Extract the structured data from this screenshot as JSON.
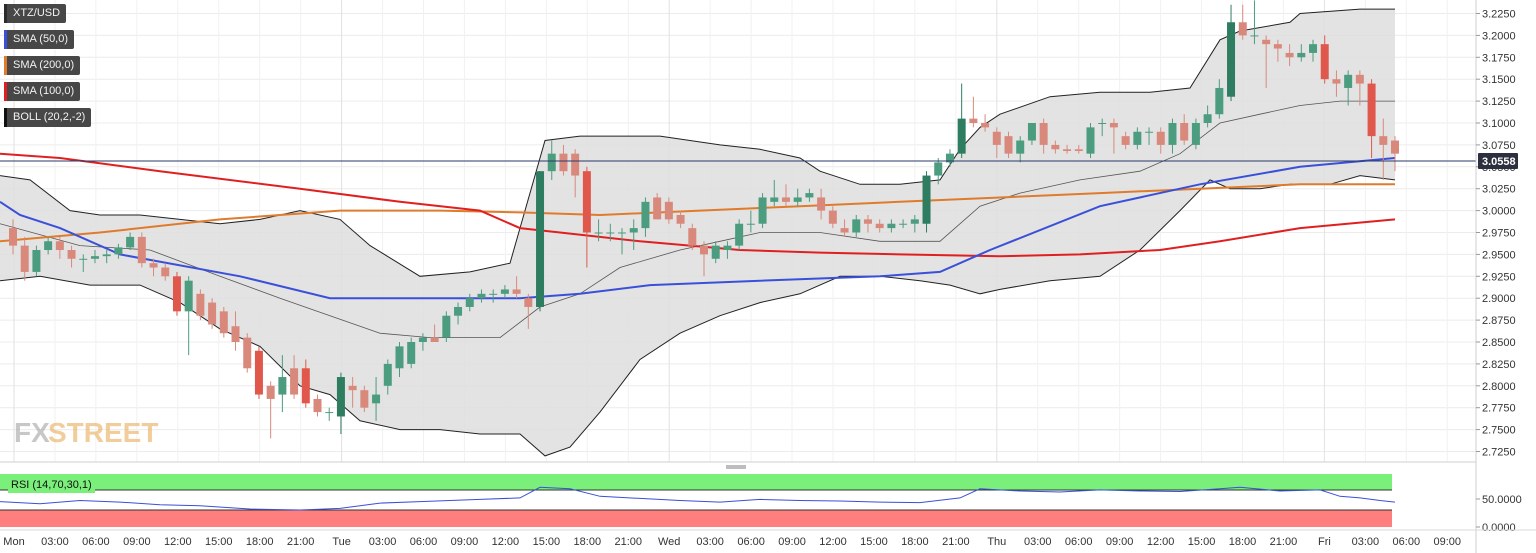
{
  "legend": [
    {
      "label": "XTZ/USD",
      "color": "#2b2b2b"
    },
    {
      "label": "SMA (50,0)",
      "color": "#3a50d9"
    },
    {
      "label": "SMA (200,0)",
      "color": "#e07b2c"
    },
    {
      "label": "SMA (100,0)",
      "color": "#e02020"
    },
    {
      "label": "BOLL (20,2,-2)",
      "color": "#111111"
    }
  ],
  "rsi_label": "RSI (14,70,30,1)",
  "current_price": "3.0558",
  "watermark": {
    "fx": "FX",
    "street": "STREET"
  },
  "colors": {
    "up": "#4c9c7f",
    "up_strong": "#2e7d61",
    "down": "#d9897c",
    "down_strong": "#e0584c",
    "sma50": "#3a50d9",
    "sma100": "#e02020",
    "sma200": "#e07b2c",
    "boll_fill": "#dedede",
    "boll_line": "#222222",
    "rsi_overbought": "#7aef7a",
    "rsi_oversold": "#ff7f7f",
    "rsi_line": "#3a50d9"
  },
  "chart_data": {
    "type": "candlestick",
    "symbol": "XTZ/USD",
    "ylim": [
      2.72,
      3.24
    ],
    "y_ticks": [
      "3.2250",
      "3.2000",
      "3.1750",
      "3.1500",
      "3.1250",
      "3.1000",
      "3.0750",
      "3.0500",
      "3.0250",
      "3.0000",
      "2.9750",
      "2.9500",
      "2.9250",
      "2.9000",
      "2.8750",
      "2.8500",
      "2.8250",
      "2.8000",
      "2.7750",
      "2.7500",
      "2.7250"
    ],
    "x_ticks": [
      "Mon",
      "03:00",
      "06:00",
      "09:00",
      "12:00",
      "15:00",
      "18:00",
      "21:00",
      "Tue",
      "03:00",
      "06:00",
      "09:00",
      "12:00",
      "15:00",
      "18:00",
      "21:00",
      "Wed",
      "03:00",
      "06:00",
      "09:00",
      "12:00",
      "15:00",
      "18:00",
      "21:00",
      "Thu",
      "03:00",
      "06:00",
      "09:00",
      "12:00",
      "15:00",
      "18:00",
      "21:00",
      "Fri",
      "03:00",
      "06:00",
      "09:00"
    ],
    "candles": [
      [
        2.98,
        2.99,
        2.95,
        2.96
      ],
      [
        2.96,
        2.97,
        2.92,
        2.93
      ],
      [
        2.93,
        2.96,
        2.925,
        2.955
      ],
      [
        2.955,
        2.97,
        2.95,
        2.965
      ],
      [
        2.965,
        2.97,
        2.945,
        2.955
      ],
      [
        2.955,
        2.96,
        2.935,
        2.945
      ],
      [
        2.945,
        2.95,
        2.93,
        2.945
      ],
      [
        2.945,
        2.955,
        2.94,
        2.948
      ],
      [
        2.948,
        2.955,
        2.94,
        2.95
      ],
      [
        2.95,
        2.962,
        2.945,
        2.958
      ],
      [
        2.958,
        2.975,
        2.955,
        2.97
      ],
      [
        2.97,
        2.975,
        2.935,
        2.94
      ],
      [
        2.94,
        2.945,
        2.925,
        2.935
      ],
      [
        2.935,
        2.94,
        2.92,
        2.925
      ],
      [
        2.925,
        2.93,
        2.88,
        2.885
      ],
      [
        2.885,
        2.925,
        2.835,
        2.92
      ],
      [
        2.905,
        2.91,
        2.875,
        2.88
      ],
      [
        2.895,
        2.9,
        2.865,
        2.87
      ],
      [
        2.885,
        2.89,
        2.855,
        2.86
      ],
      [
        2.868,
        2.885,
        2.84,
        2.85
      ],
      [
        2.855,
        2.86,
        2.815,
        2.82
      ],
      [
        2.84,
        2.845,
        2.785,
        2.79
      ],
      [
        2.8,
        2.805,
        2.74,
        2.785
      ],
      [
        2.79,
        2.835,
        2.77,
        2.81
      ],
      [
        2.82,
        2.835,
        2.785,
        2.79
      ],
      [
        2.82,
        2.83,
        2.775,
        2.78
      ],
      [
        2.785,
        2.79,
        2.765,
        2.77
      ],
      [
        2.77,
        2.775,
        2.76,
        2.77
      ],
      [
        2.765,
        2.815,
        2.745,
        2.81
      ],
      [
        2.8,
        2.81,
        2.775,
        2.795
      ],
      [
        2.795,
        2.8,
        2.77,
        2.775
      ],
      [
        2.78,
        2.81,
        2.76,
        2.79
      ],
      [
        2.8,
        2.83,
        2.79,
        2.825
      ],
      [
        2.82,
        2.85,
        2.81,
        2.845
      ],
      [
        2.825,
        2.855,
        2.82,
        2.85
      ],
      [
        2.85,
        2.86,
        2.84,
        2.855
      ],
      [
        2.855,
        2.87,
        2.85,
        2.85
      ],
      [
        2.855,
        2.885,
        2.85,
        2.88
      ],
      [
        2.88,
        2.895,
        2.87,
        2.89
      ],
      [
        2.89,
        2.905,
        2.885,
        2.9
      ],
      [
        2.9,
        2.91,
        2.895,
        2.905
      ],
      [
        2.905,
        2.91,
        2.895,
        2.905
      ],
      [
        2.905,
        2.915,
        2.9,
        2.91
      ],
      [
        2.91,
        2.925,
        2.9,
        2.905
      ],
      [
        2.9,
        2.905,
        2.865,
        2.89
      ],
      [
        2.89,
        3.045,
        2.885,
        3.045
      ],
      [
        3.045,
        3.08,
        3.035,
        3.065
      ],
      [
        3.065,
        3.075,
        3.04,
        3.045
      ],
      [
        3.065,
        3.07,
        3.015,
        3.04
      ],
      [
        3.045,
        3.05,
        2.935,
        2.975
      ],
      [
        2.975,
        2.99,
        2.965,
        2.975
      ],
      [
        2.975,
        2.985,
        2.965,
        2.975
      ],
      [
        2.975,
        2.98,
        2.95,
        2.975
      ],
      [
        2.975,
        2.99,
        2.955,
        2.98
      ],
      [
        2.98,
        3.015,
        2.97,
        3.01
      ],
      [
        3.015,
        3.02,
        2.99,
        2.99
      ],
      [
        3.01,
        3.015,
        2.985,
        2.99
      ],
      [
        2.995,
        3.0,
        2.98,
        2.985
      ],
      [
        2.98,
        2.985,
        2.955,
        2.96
      ],
      [
        2.96,
        2.965,
        2.925,
        2.95
      ],
      [
        2.945,
        2.965,
        2.94,
        2.96
      ],
      [
        2.955,
        2.965,
        2.945,
        2.96
      ],
      [
        2.96,
        2.99,
        2.955,
        2.985
      ],
      [
        2.985,
        3.0,
        2.975,
        2.985
      ],
      [
        2.985,
        3.02,
        2.98,
        3.015
      ],
      [
        3.01,
        3.035,
        3.005,
        3.015
      ],
      [
        3.015,
        3.03,
        3.005,
        3.01
      ],
      [
        3.01,
        3.025,
        3.005,
        3.015
      ],
      [
        3.015,
        3.025,
        3.01,
        3.02
      ],
      [
        3.015,
        3.025,
        2.99,
        3.0
      ],
      [
        3.0,
        3.005,
        2.98,
        2.985
      ],
      [
        2.98,
        2.99,
        2.97,
        2.975
      ],
      [
        2.975,
        2.995,
        2.97,
        2.99
      ],
      [
        2.99,
        2.995,
        2.975,
        2.985
      ],
      [
        2.985,
        2.99,
        2.975,
        2.98
      ],
      [
        2.98,
        2.99,
        2.975,
        2.985
      ],
      [
        2.985,
        2.99,
        2.98,
        2.985
      ],
      [
        2.985,
        2.995,
        2.975,
        2.99
      ],
      [
        2.985,
        3.045,
        2.975,
        3.04
      ],
      [
        3.04,
        3.06,
        3.03,
        3.055
      ],
      [
        3.055,
        3.07,
        3.05,
        3.065
      ],
      [
        3.065,
        3.145,
        3.06,
        3.105
      ],
      [
        3.105,
        3.13,
        3.095,
        3.1
      ],
      [
        3.1,
        3.11,
        3.09,
        3.095
      ],
      [
        3.09,
        3.095,
        3.06,
        3.075
      ],
      [
        3.085,
        3.09,
        3.06,
        3.065
      ],
      [
        3.065,
        3.085,
        3.055,
        3.08
      ],
      [
        3.08,
        3.1,
        3.075,
        3.1
      ],
      [
        3.1,
        3.105,
        3.065,
        3.075
      ],
      [
        3.075,
        3.08,
        3.065,
        3.07
      ],
      [
        3.07,
        3.075,
        3.065,
        3.068
      ],
      [
        3.07,
        3.075,
        3.065,
        3.068
      ],
      [
        3.065,
        3.1,
        3.06,
        3.095
      ],
      [
        3.1,
        3.105,
        3.085,
        3.1
      ],
      [
        3.1,
        3.105,
        3.065,
        3.095
      ],
      [
        3.085,
        3.09,
        3.07,
        3.075
      ],
      [
        3.075,
        3.095,
        3.07,
        3.09
      ],
      [
        3.09,
        3.095,
        3.075,
        3.09
      ],
      [
        3.09,
        3.095,
        3.065,
        3.075
      ],
      [
        3.075,
        3.105,
        3.065,
        3.1
      ],
      [
        3.1,
        3.11,
        3.075,
        3.08
      ],
      [
        3.075,
        3.105,
        3.07,
        3.1
      ],
      [
        3.1,
        3.12,
        3.095,
        3.11
      ],
      [
        3.11,
        3.15,
        3.105,
        3.14
      ],
      [
        3.13,
        3.235,
        3.125,
        3.215
      ],
      [
        3.215,
        3.235,
        3.195,
        3.2
      ],
      [
        3.2,
        3.24,
        3.19,
        3.2
      ],
      [
        3.195,
        3.2,
        3.14,
        3.19
      ],
      [
        3.19,
        3.195,
        3.17,
        3.185
      ],
      [
        3.18,
        3.19,
        3.165,
        3.175
      ],
      [
        3.175,
        3.19,
        3.17,
        3.18
      ],
      [
        3.18,
        3.195,
        3.17,
        3.19
      ],
      [
        3.19,
        3.2,
        3.145,
        3.15
      ],
      [
        3.15,
        3.16,
        3.13,
        3.145
      ],
      [
        3.14,
        3.16,
        3.12,
        3.155
      ],
      [
        3.155,
        3.16,
        3.12,
        3.145
      ],
      [
        3.145,
        3.15,
        3.06,
        3.085
      ],
      [
        3.085,
        3.105,
        3.035,
        3.075
      ],
      [
        3.08,
        3.085,
        3.045,
        3.065
      ]
    ],
    "sma50": [
      [
        0,
        3.01
      ],
      [
        20,
        2.995
      ],
      [
        60,
        2.98
      ],
      [
        120,
        2.95
      ],
      [
        240,
        2.925
      ],
      [
        330,
        2.9
      ],
      [
        440,
        2.9
      ],
      [
        520,
        2.9
      ],
      [
        580,
        2.905
      ],
      [
        650,
        2.915
      ],
      [
        760,
        2.92
      ],
      [
        880,
        2.925
      ],
      [
        940,
        2.93
      ],
      [
        990,
        2.955
      ],
      [
        1100,
        3.005
      ],
      [
        1200,
        3.03
      ],
      [
        1300,
        3.05
      ],
      [
        1395,
        3.06
      ]
    ],
    "sma100": [
      [
        0,
        3.065
      ],
      [
        60,
        3.06
      ],
      [
        160,
        3.045
      ],
      [
        300,
        3.025
      ],
      [
        400,
        3.01
      ],
      [
        480,
        3.0
      ],
      [
        520,
        2.98
      ],
      [
        560,
        2.975
      ],
      [
        640,
        2.965
      ],
      [
        740,
        2.955
      ],
      [
        820,
        2.952
      ],
      [
        900,
        2.95
      ],
      [
        1000,
        2.948
      ],
      [
        1080,
        2.95
      ],
      [
        1160,
        2.955
      ],
      [
        1220,
        2.965
      ],
      [
        1300,
        2.98
      ],
      [
        1395,
        2.99
      ]
    ],
    "sma200": [
      [
        0,
        2.965
      ],
      [
        100,
        2.975
      ],
      [
        220,
        2.99
      ],
      [
        340,
        3.0
      ],
      [
        440,
        3.0
      ],
      [
        520,
        2.998
      ],
      [
        600,
        2.995
      ],
      [
        700,
        3.0
      ],
      [
        800,
        3.005
      ],
      [
        900,
        3.01
      ],
      [
        1000,
        3.015
      ],
      [
        1100,
        3.02
      ],
      [
        1200,
        3.025
      ],
      [
        1300,
        3.03
      ],
      [
        1395,
        3.03
      ]
    ],
    "boll_upper": [
      [
        0,
        3.04
      ],
      [
        30,
        3.035
      ],
      [
        70,
        3.0
      ],
      [
        100,
        2.995
      ],
      [
        140,
        2.995
      ],
      [
        180,
        2.99
      ],
      [
        220,
        2.985
      ],
      [
        260,
        2.99
      ],
      [
        300,
        3.0
      ],
      [
        340,
        2.99
      ],
      [
        370,
        2.96
      ],
      [
        420,
        2.925
      ],
      [
        470,
        2.93
      ],
      [
        510,
        2.94
      ],
      [
        545,
        3.08
      ],
      [
        580,
        3.085
      ],
      [
        630,
        3.085
      ],
      [
        660,
        3.085
      ],
      [
        720,
        3.075
      ],
      [
        760,
        3.07
      ],
      [
        800,
        3.06
      ],
      [
        820,
        3.045
      ],
      [
        860,
        3.03
      ],
      [
        900,
        3.03
      ],
      [
        940,
        3.035
      ],
      [
        960,
        3.07
      ],
      [
        980,
        3.095
      ],
      [
        1000,
        3.11
      ],
      [
        1050,
        3.13
      ],
      [
        1100,
        3.135
      ],
      [
        1150,
        3.135
      ],
      [
        1190,
        3.14
      ],
      [
        1220,
        3.195
      ],
      [
        1240,
        3.205
      ],
      [
        1290,
        3.215
      ],
      [
        1300,
        3.225
      ],
      [
        1360,
        3.23
      ],
      [
        1395,
        3.23
      ]
    ],
    "boll_lower": [
      [
        0,
        2.92
      ],
      [
        40,
        2.925
      ],
      [
        90,
        2.915
      ],
      [
        140,
        2.915
      ],
      [
        180,
        2.895
      ],
      [
        220,
        2.865
      ],
      [
        260,
        2.845
      ],
      [
        300,
        2.8
      ],
      [
        330,
        2.79
      ],
      [
        360,
        2.76
      ],
      [
        400,
        2.75
      ],
      [
        440,
        2.75
      ],
      [
        480,
        2.745
      ],
      [
        520,
        2.745
      ],
      [
        545,
        2.72
      ],
      [
        570,
        2.73
      ],
      [
        600,
        2.77
      ],
      [
        640,
        2.83
      ],
      [
        680,
        2.86
      ],
      [
        720,
        2.88
      ],
      [
        760,
        2.895
      ],
      [
        800,
        2.905
      ],
      [
        840,
        2.925
      ],
      [
        880,
        2.925
      ],
      [
        920,
        2.92
      ],
      [
        950,
        2.915
      ],
      [
        980,
        2.905
      ],
      [
        1000,
        2.91
      ],
      [
        1050,
        2.92
      ],
      [
        1100,
        2.925
      ],
      [
        1140,
        2.955
      ],
      [
        1180,
        3.0
      ],
      [
        1210,
        3.035
      ],
      [
        1230,
        3.025
      ],
      [
        1260,
        3.025
      ],
      [
        1290,
        3.03
      ],
      [
        1330,
        3.03
      ],
      [
        1360,
        3.04
      ],
      [
        1395,
        3.035
      ]
    ],
    "boll_mid": [
      [
        0,
        2.985
      ],
      [
        80,
        2.96
      ],
      [
        150,
        2.955
      ],
      [
        220,
        2.925
      ],
      [
        280,
        2.9
      ],
      [
        330,
        2.88
      ],
      [
        380,
        2.86
      ],
      [
        430,
        2.855
      ],
      [
        500,
        2.855
      ],
      [
        540,
        2.89
      ],
      [
        580,
        2.905
      ],
      [
        620,
        2.935
      ],
      [
        680,
        2.955
      ],
      [
        720,
        2.965
      ],
      [
        760,
        2.975
      ],
      [
        820,
        2.975
      ],
      [
        880,
        2.965
      ],
      [
        940,
        2.965
      ],
      [
        980,
        3.005
      ],
      [
        1020,
        3.02
      ],
      [
        1080,
        3.035
      ],
      [
        1140,
        3.045
      ],
      [
        1180,
        3.065
      ],
      [
        1220,
        3.1
      ],
      [
        1260,
        3.11
      ],
      [
        1300,
        3.12
      ],
      [
        1340,
        3.125
      ],
      [
        1395,
        3.125
      ]
    ],
    "rsi": [
      [
        0,
        48
      ],
      [
        40,
        44
      ],
      [
        80,
        50
      ],
      [
        120,
        47
      ],
      [
        160,
        42
      ],
      [
        200,
        40
      ],
      [
        250,
        34
      ],
      [
        300,
        32
      ],
      [
        340,
        35
      ],
      [
        380,
        45
      ],
      [
        420,
        48
      ],
      [
        480,
        52
      ],
      [
        520,
        55
      ],
      [
        540,
        75
      ],
      [
        570,
        72
      ],
      [
        600,
        58
      ],
      [
        640,
        54
      ],
      [
        680,
        50
      ],
      [
        720,
        47
      ],
      [
        760,
        52
      ],
      [
        800,
        50
      ],
      [
        840,
        49
      ],
      [
        880,
        47
      ],
      [
        920,
        46
      ],
      [
        960,
        55
      ],
      [
        980,
        72
      ],
      [
        1020,
        68
      ],
      [
        1060,
        66
      ],
      [
        1100,
        70
      ],
      [
        1140,
        68
      ],
      [
        1180,
        67
      ],
      [
        1220,
        72
      ],
      [
        1240,
        75
      ],
      [
        1280,
        68
      ],
      [
        1320,
        70
      ],
      [
        1340,
        58
      ],
      [
        1360,
        55
      ],
      [
        1380,
        50
      ],
      [
        1395,
        47
      ]
    ],
    "rsi_ticks": [
      "50.0000",
      "0.0000"
    ]
  }
}
